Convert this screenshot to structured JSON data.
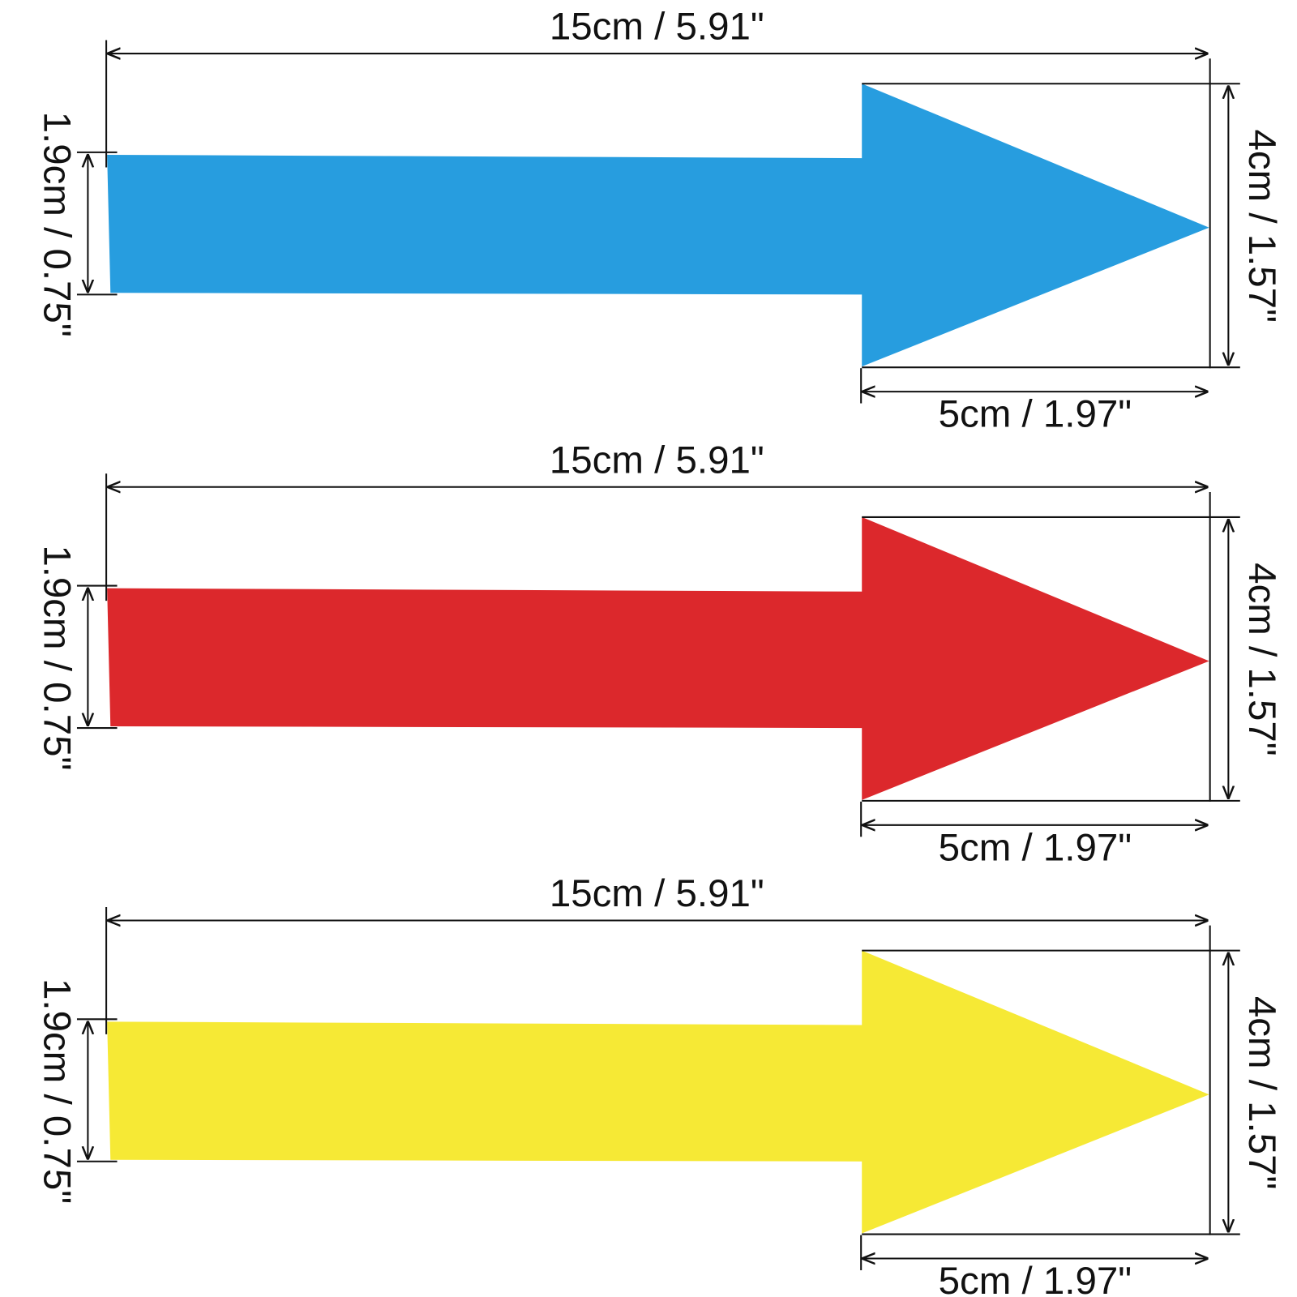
{
  "arrows": [
    {
      "color": "#279ddf",
      "length": "15cm / 5.91\"",
      "shaft_width": "1.9cm / 0.75\"",
      "head_height": "4cm / 1.57\"",
      "head_length": "5cm / 1.97\""
    },
    {
      "color": "#dc282c",
      "length": "15cm / 5.91\"",
      "shaft_width": "1.9cm / 0.75\"",
      "head_height": "4cm / 1.57\"",
      "head_length": "5cm / 1.97\""
    },
    {
      "color": "#f6e935",
      "length": "15cm / 5.91\"",
      "shaft_width": "1.9cm / 0.75\"",
      "head_height": "4cm / 1.57\"",
      "head_length": "5cm / 1.97\""
    }
  ]
}
